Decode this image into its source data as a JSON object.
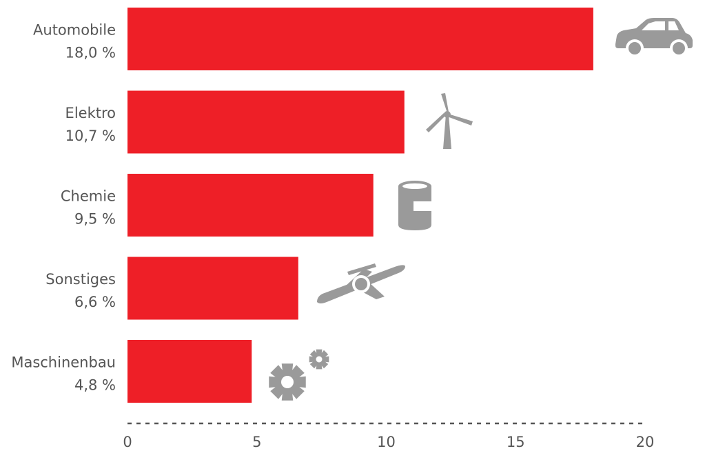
{
  "chart_data": {
    "type": "bar",
    "orientation": "horizontal",
    "categories": [
      "Automobile",
      "Elektro",
      "Chemie",
      "Sonstiges",
      "Maschinenbau"
    ],
    "value_labels": [
      "18,0 %",
      "10,7 %",
      "9,5 %",
      "6,6 %",
      "4,8 %"
    ],
    "values": [
      18.0,
      10.7,
      9.5,
      6.6,
      4.8
    ],
    "icons": [
      "car-icon",
      "wind-turbine-icon",
      "barrel-icon",
      "airplane-icon",
      "gears-icon"
    ],
    "xlim": [
      0,
      20
    ],
    "xticks": [
      0,
      5,
      10,
      15,
      20
    ],
    "xtick_labels": [
      "0",
      "5",
      "10",
      "15",
      "20"
    ],
    "grid": false,
    "axis_style": "dashed",
    "colors": {
      "bar": "#ee1f27",
      "icon": "#9a9a9a",
      "text": "#555555",
      "axis": "#555555"
    }
  }
}
